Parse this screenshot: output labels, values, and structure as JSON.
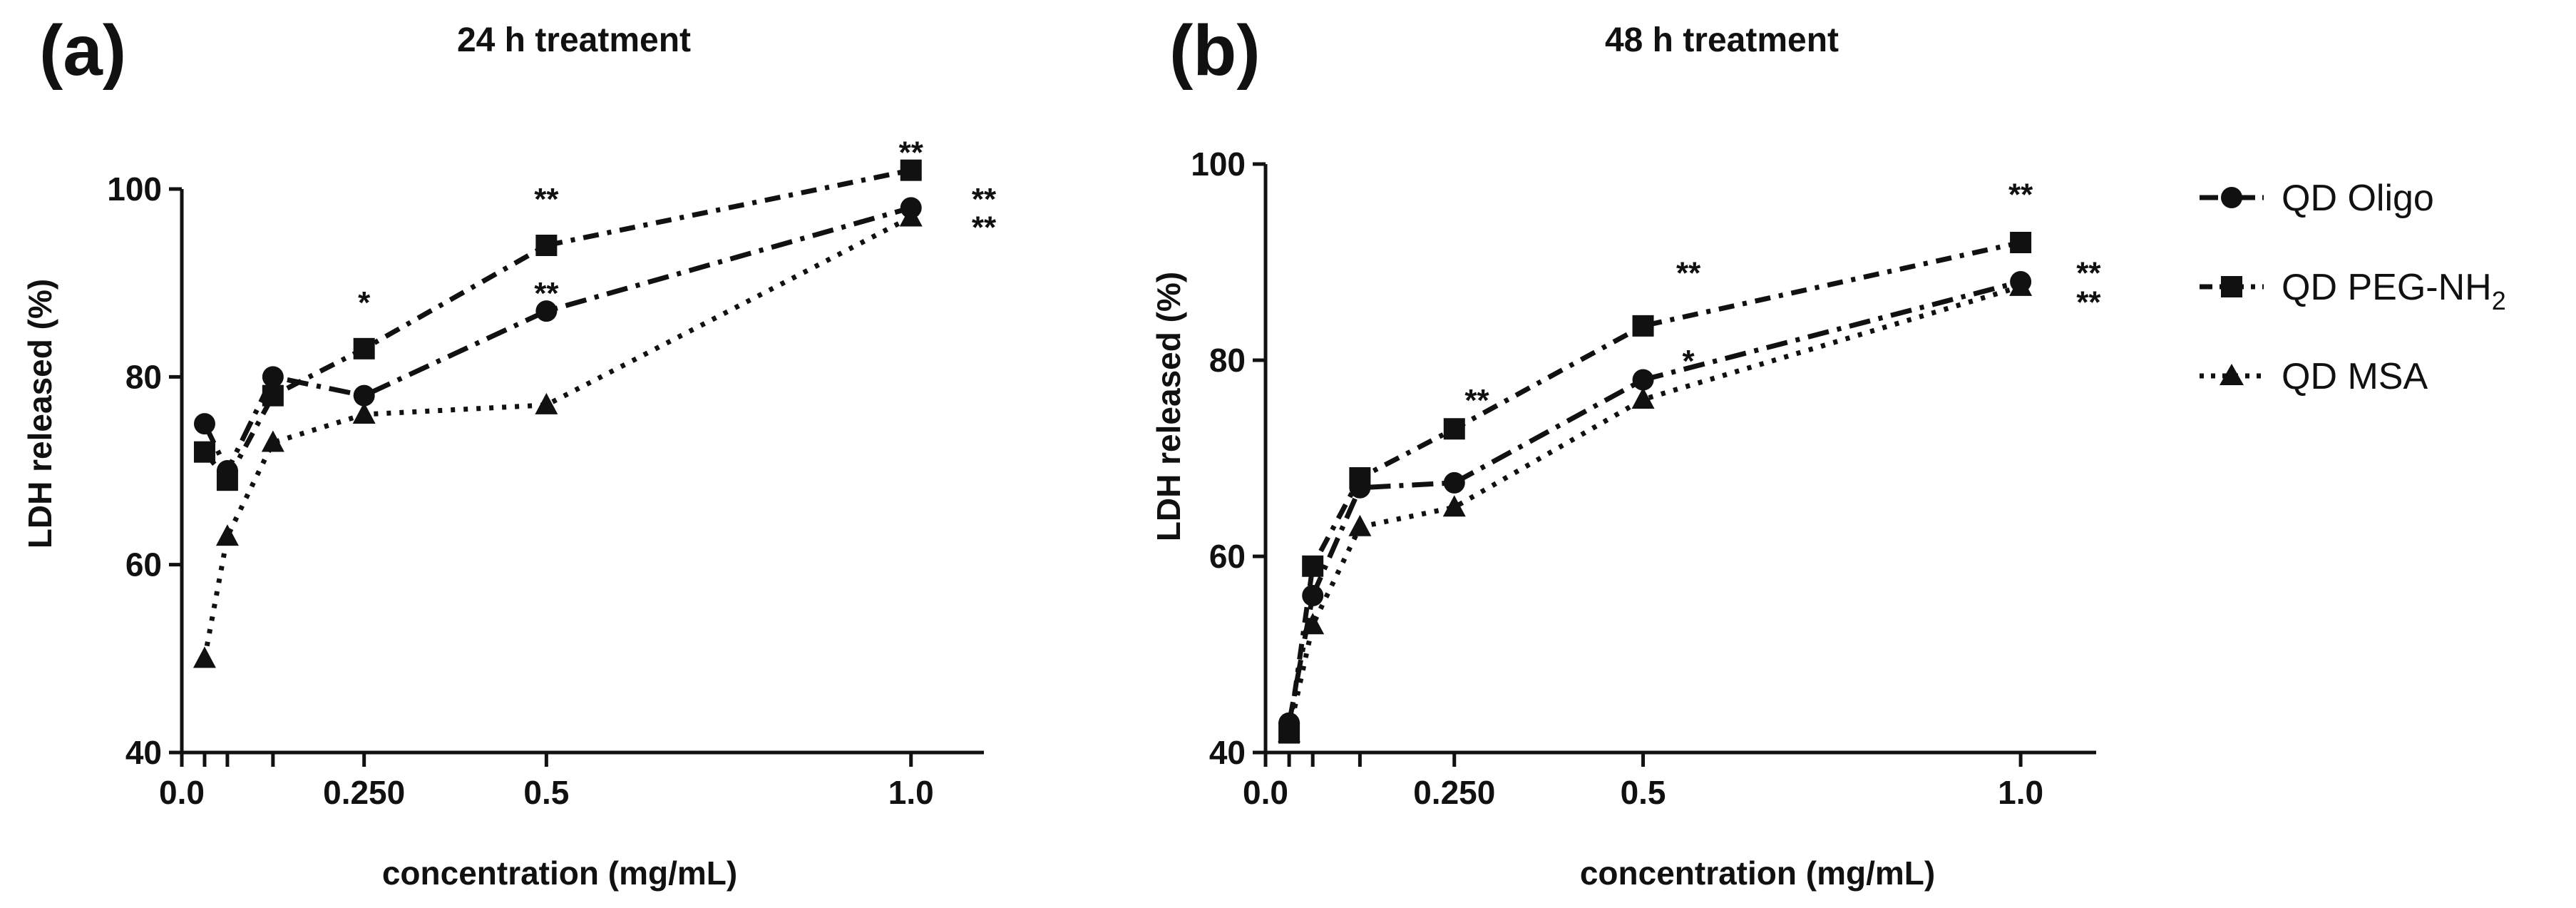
{
  "legend": {
    "entries": [
      {
        "name": "QD Oligo",
        "marker": "circle",
        "dash": "long-dash-dot"
      },
      {
        "name": "QD PEG-NH",
        "subscript": "2",
        "marker": "square",
        "dash": "dash-dot"
      },
      {
        "name": "QD MSA",
        "marker": "triangle",
        "dash": "dotted"
      }
    ]
  },
  "chart_data": [
    {
      "panel_label": "(a)",
      "type": "line",
      "title": "24 h  treatment",
      "xlabel": "concentration (mg/mL)",
      "ylabel": "LDH released (%)",
      "xlim": [
        0.0,
        1.1
      ],
      "ylim": [
        40,
        100
      ],
      "xticks": [
        {
          "value": 0.0,
          "label": "0.0"
        },
        {
          "value": 0.25,
          "label": "0.250"
        },
        {
          "value": 0.5,
          "label": "0.5"
        },
        {
          "value": 1.0,
          "label": "1.0"
        }
      ],
      "yticks": [
        {
          "value": 40,
          "label": "40"
        },
        {
          "value": 60,
          "label": "60"
        },
        {
          "value": 80,
          "label": "80"
        },
        {
          "value": 100,
          "label": "100"
        }
      ],
      "x_minor_ticks": [
        0.03125,
        0.0625,
        0.125
      ],
      "series": [
        {
          "name": "QD Oligo",
          "marker": "circle",
          "x": [
            0.03125,
            0.0625,
            0.125,
            0.25,
            0.5,
            1.0
          ],
          "y": [
            75,
            70,
            80,
            78,
            87,
            98
          ]
        },
        {
          "name": "QD PEG-NH2",
          "marker": "square",
          "x": [
            0.03125,
            0.0625,
            0.125,
            0.25,
            0.5,
            1.0
          ],
          "y": [
            72,
            69,
            78,
            83,
            94,
            102
          ]
        },
        {
          "name": "QD MSA",
          "marker": "triangle",
          "x": [
            0.03125,
            0.0625,
            0.125,
            0.25,
            0.5,
            1.0
          ],
          "y": [
            50,
            63,
            73,
            76,
            77,
            97
          ]
        }
      ],
      "annotations": [
        {
          "text": "**",
          "x": 1.0,
          "y": 104
        },
        {
          "text": "**",
          "x": 0.5,
          "y": 99
        },
        {
          "text": "*",
          "x": 0.25,
          "y": 88
        },
        {
          "text": "**",
          "x": 0.5,
          "y": 89
        },
        {
          "text": "**",
          "x": 1.1,
          "y": 99
        },
        {
          "text": "**",
          "x": 1.1,
          "y": 96
        }
      ]
    },
    {
      "panel_label": "(b)",
      "type": "line",
      "title": "48  h treatment",
      "xlabel": "concentration (mg/mL)",
      "ylabel": "LDH released (%)",
      "xlim": [
        0.0,
        1.1
      ],
      "ylim": [
        40,
        100
      ],
      "xticks": [
        {
          "value": 0.0,
          "label": "0.0"
        },
        {
          "value": 0.25,
          "label": "0.250"
        },
        {
          "value": 0.5,
          "label": "0.5"
        },
        {
          "value": 1.0,
          "label": "1.0"
        }
      ],
      "yticks": [
        {
          "value": 40,
          "label": "40"
        },
        {
          "value": 60,
          "label": "60"
        },
        {
          "value": 80,
          "label": "80"
        },
        {
          "value": 100,
          "label": "100"
        }
      ],
      "x_minor_ticks": [
        0.03125,
        0.0625,
        0.125
      ],
      "series": [
        {
          "name": "QD Oligo",
          "marker": "circle",
          "x": [
            0.03125,
            0.0625,
            0.125,
            0.25,
            0.5,
            1.0
          ],
          "y": [
            43,
            56,
            67,
            67.5,
            78,
            88
          ]
        },
        {
          "name": "QD PEG-NH2",
          "marker": "square",
          "x": [
            0.03125,
            0.0625,
            0.125,
            0.25,
            0.5,
            1.0
          ],
          "y": [
            42,
            59,
            68,
            73,
            83.5,
            92
          ]
        },
        {
          "name": "QD MSA",
          "marker": "triangle",
          "x": [
            0.03125,
            0.0625,
            0.125,
            0.25,
            0.5,
            1.0
          ],
          "y": [
            42,
            53,
            63,
            65,
            76,
            87.5
          ]
        }
      ],
      "annotations": [
        {
          "text": "**",
          "x": 1.0,
          "y": 97
        },
        {
          "text": "**",
          "x": 0.56,
          "y": 89
        },
        {
          "text": "*",
          "x": 0.56,
          "y": 80
        },
        {
          "text": "**",
          "x": 0.28,
          "y": 76
        },
        {
          "text": "**",
          "x": 1.09,
          "y": 89
        },
        {
          "text": "**",
          "x": 1.09,
          "y": 86
        }
      ]
    }
  ]
}
